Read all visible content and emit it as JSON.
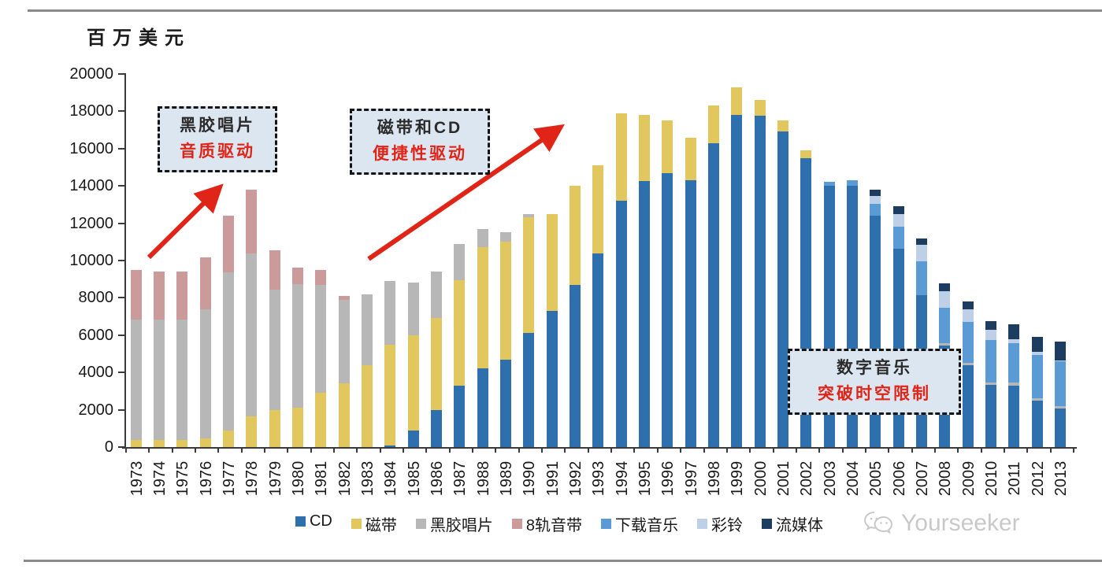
{
  "unit_label": "百万美元",
  "watermark": {
    "text": "Yourseeker"
  },
  "annotations": [
    {
      "line1": "黑胶唱片",
      "line2": "音质驱动"
    },
    {
      "line1": "磁带和CD",
      "line2": "便捷性驱动"
    },
    {
      "line1": "数字音乐",
      "line2": "突破时空限制"
    }
  ],
  "colors": {
    "accent_red": "#e02518",
    "annotation_fill": "#dce6f1",
    "annotation_border": "#141414",
    "axis": "#3a3a3a",
    "rule_gray": "#8a8a8a",
    "watermark_gray": "#c9c9c9"
  },
  "chart_data": {
    "type": "bar",
    "stacked": true,
    "title": "",
    "xlabel": "",
    "ylabel": "百万美元",
    "ylim": [
      0,
      20000
    ],
    "ytick_step": 2000,
    "grid": false,
    "legend_position": "bottom",
    "categories": [
      "1973",
      "1974",
      "1975",
      "1976",
      "1977",
      "1978",
      "1979",
      "1980",
      "1981",
      "1982",
      "1983",
      "1984",
      "1985",
      "1986",
      "1987",
      "1988",
      "1989",
      "1990",
      "1991",
      "1992",
      "1993",
      "1994",
      "1995",
      "1996",
      "1997",
      "1998",
      "1999",
      "2000",
      "2001",
      "2002",
      "2003",
      "2004",
      "2005",
      "2006",
      "2007",
      "2008",
      "2009",
      "2010",
      "2011",
      "2012",
      "2013"
    ],
    "series": [
      {
        "key": "cd",
        "name": "CD",
        "color": "#2e6fad",
        "values": [
          0,
          0,
          0,
          0,
          0,
          0,
          0,
          0,
          0,
          0,
          0,
          100,
          900,
          2000,
          3300,
          4200,
          4700,
          6100,
          7300,
          8700,
          10400,
          13200,
          14250,
          14700,
          14300,
          16300,
          17800,
          17750,
          16900,
          15500,
          14000,
          14000,
          12400,
          10650,
          8150,
          5450,
          4400,
          3350,
          3300,
          2500,
          2050
        ]
      },
      {
        "key": "cassette",
        "name": "磁带",
        "color": "#e2c65e",
        "values": [
          400,
          400,
          400,
          450,
          900,
          1650,
          2000,
          2100,
          2900,
          3400,
          4400,
          5400,
          5100,
          4900,
          5650,
          6500,
          6300,
          6200,
          5200,
          5300,
          4700,
          4700,
          3550,
          2800,
          2300,
          2000,
          1500,
          850,
          600,
          400,
          0,
          0,
          0,
          0,
          0,
          0,
          0,
          0,
          0,
          0,
          0
        ]
      },
      {
        "key": "vinyl",
        "name": "黑胶唱片",
        "color": "#b7b7b7",
        "values": [
          6450,
          6450,
          6450,
          6950,
          8450,
          8750,
          6450,
          6650,
          5800,
          4500,
          3800,
          3400,
          2800,
          2500,
          1950,
          1000,
          500,
          200,
          0,
          0,
          0,
          0,
          0,
          0,
          0,
          0,
          0,
          0,
          0,
          0,
          0,
          0,
          0,
          0,
          0,
          100,
          100,
          100,
          150,
          100,
          150
        ]
      },
      {
        "key": "eight_track",
        "name": "8轨音带",
        "color": "#cb9b9b",
        "values": [
          2650,
          2550,
          2550,
          2750,
          3050,
          3400,
          2100,
          850,
          800,
          200,
          0,
          0,
          0,
          0,
          0,
          0,
          0,
          0,
          0,
          0,
          0,
          0,
          0,
          0,
          0,
          0,
          0,
          0,
          0,
          0,
          0,
          0,
          0,
          0,
          0,
          0,
          0,
          0,
          0,
          0,
          0
        ]
      },
      {
        "key": "downloads",
        "name": "下载音乐",
        "color": "#5b9bd5",
        "values": [
          0,
          0,
          0,
          0,
          0,
          0,
          0,
          0,
          0,
          0,
          0,
          0,
          0,
          0,
          0,
          0,
          0,
          0,
          0,
          0,
          0,
          0,
          0,
          0,
          0,
          0,
          0,
          0,
          0,
          0,
          200,
          300,
          650,
          1150,
          1800,
          1900,
          2200,
          2300,
          2100,
          2350,
          2400
        ]
      },
      {
        "key": "ringtones",
        "name": "彩铃",
        "color": "#bdd0e8",
        "values": [
          0,
          0,
          0,
          0,
          0,
          0,
          0,
          0,
          0,
          0,
          0,
          0,
          0,
          0,
          0,
          0,
          0,
          0,
          0,
          0,
          0,
          0,
          0,
          0,
          0,
          0,
          0,
          0,
          0,
          0,
          0,
          0,
          400,
          700,
          900,
          900,
          700,
          550,
          250,
          150,
          50
        ]
      },
      {
        "key": "streaming",
        "name": "流媒体",
        "color": "#1c3d5f",
        "values": [
          0,
          0,
          0,
          0,
          0,
          0,
          0,
          0,
          0,
          0,
          0,
          0,
          0,
          0,
          0,
          0,
          0,
          0,
          0,
          0,
          0,
          0,
          0,
          0,
          0,
          0,
          0,
          0,
          0,
          0,
          0,
          0,
          350,
          420,
          350,
          420,
          400,
          450,
          800,
          800,
          1000
        ]
      }
    ]
  }
}
